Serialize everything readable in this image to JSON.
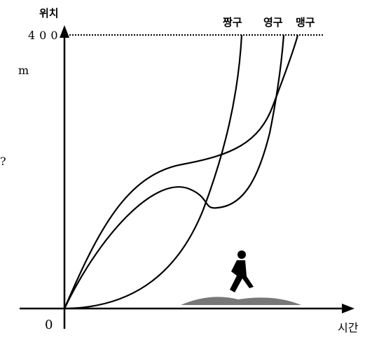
{
  "axis": {
    "y_label": "위치",
    "x_label": "시간",
    "origin": "0",
    "max_label": "400",
    "unit": "m",
    "mark": "?"
  },
  "curves": [
    {
      "label": "짱구"
    },
    {
      "label": "영구"
    },
    {
      "label": "맹구"
    }
  ]
}
